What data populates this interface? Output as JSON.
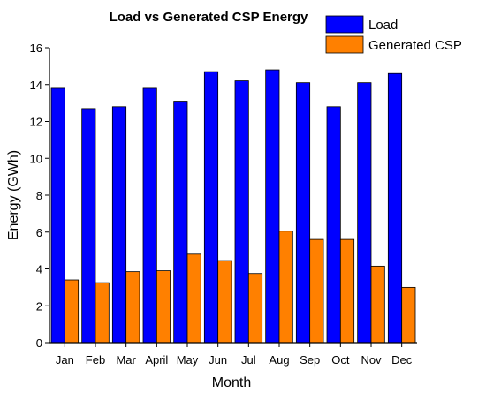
{
  "chart_data": {
    "type": "bar",
    "title": "Load vs Generated CSP Energy",
    "xlabel": "Month",
    "ylabel": "Energy (GWh)",
    "categories": [
      "Jan",
      "Feb",
      "Mar",
      "April",
      "May",
      "Jun",
      "Jul",
      "Aug",
      "Sep",
      "Oct",
      "Nov",
      "Dec"
    ],
    "series": [
      {
        "name": "Load",
        "color": "#0000ff",
        "values": [
          13.8,
          12.7,
          12.8,
          13.8,
          13.1,
          14.7,
          14.2,
          14.8,
          14.1,
          12.8,
          14.1,
          14.6
        ]
      },
      {
        "name": "Generated CSP",
        "color": "#ff8000",
        "values": [
          3.4,
          3.25,
          3.85,
          3.9,
          4.8,
          4.45,
          3.75,
          6.05,
          5.6,
          5.6,
          4.15,
          3.0
        ]
      }
    ],
    "ylim": [
      0,
      16
    ],
    "yticks": [
      0,
      2,
      4,
      6,
      8,
      10,
      12,
      14,
      16
    ],
    "grid": false,
    "legend_position": "top-right"
  }
}
